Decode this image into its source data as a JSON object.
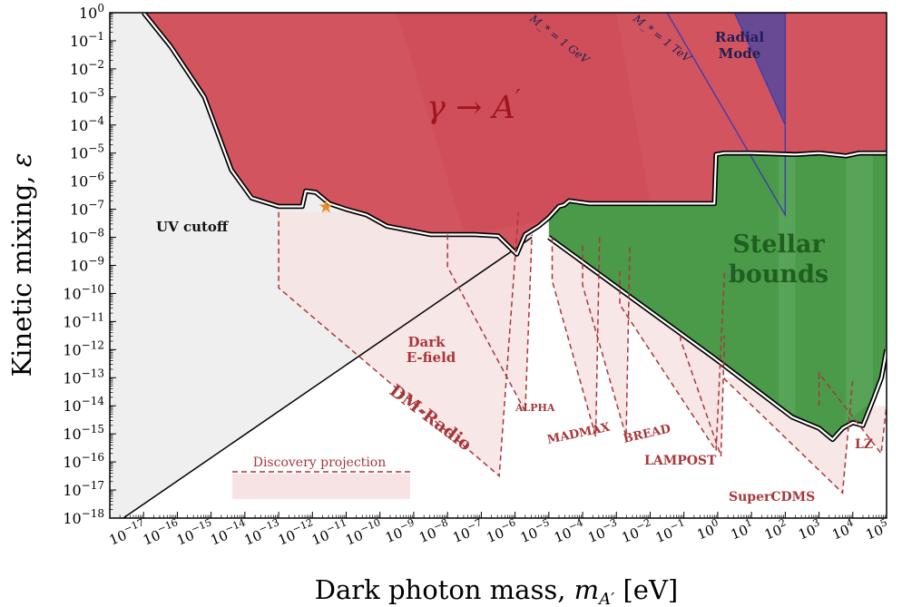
{
  "chart_data": {
    "type": "area",
    "xlabel": "Dark photon mass, m_A′ [eV]",
    "ylabel": "Kinetic mixing, ε",
    "x_scale": "log",
    "y_scale": "log",
    "xlim_exponent": [
      -18,
      5
    ],
    "ylim_exponent": [
      -18,
      0
    ],
    "x_tick_labels": [
      "10−17",
      "10−16",
      "10−15",
      "10−14",
      "10−13",
      "10−12",
      "10−11",
      "10−10",
      "10−9",
      "10−8",
      "10−7",
      "10−6",
      "10−5",
      "10−4",
      "10−3",
      "10−2",
      "10−1",
      "100",
      "101",
      "102",
      "103",
      "104",
      "105"
    ],
    "y_tick_labels": [
      "100",
      "10−1",
      "10−2",
      "10−3",
      "10−4",
      "10−5",
      "10−6",
      "10−7",
      "10−8",
      "10−9",
      "10−10",
      "10−11",
      "10−12",
      "10−13",
      "10−14",
      "10−15",
      "10−16",
      "10−17",
      "10−18"
    ],
    "regions": [
      {
        "name": "UV cutoff",
        "color": "#efefef"
      },
      {
        "name": "γ → A′",
        "color": "#d2545f"
      },
      {
        "name": "Stellar bounds",
        "color": "#4a9a4a"
      },
      {
        "name": "Radial Mode",
        "color": "#5e4a99"
      }
    ],
    "constraint_boundary": [
      [
        -17.0,
        0.0
      ],
      [
        -16.2,
        -1.2
      ],
      [
        -15.2,
        -3.0
      ],
      [
        -14.4,
        -5.6
      ],
      [
        -13.8,
        -6.6
      ],
      [
        -13.0,
        -6.9
      ],
      [
        -12.3,
        -6.9
      ],
      [
        -12.2,
        -6.35
      ],
      [
        -11.9,
        -6.4
      ],
      [
        -11.5,
        -6.8
      ],
      [
        -11.0,
        -7.0
      ],
      [
        -10.4,
        -7.2
      ],
      [
        -9.8,
        -7.6
      ],
      [
        -8.5,
        -7.9
      ],
      [
        -7.2,
        -7.9
      ],
      [
        -6.5,
        -7.95
      ],
      [
        -5.95,
        -8.6
      ],
      [
        -5.7,
        -7.9
      ],
      [
        -5.3,
        -7.6
      ],
      [
        -5.0,
        -7.3
      ],
      [
        -4.7,
        -6.9
      ],
      [
        -4.55,
        -6.85
      ],
      [
        -4.4,
        -6.7
      ],
      [
        -3.8,
        -6.8
      ],
      [
        -2.3,
        -6.8
      ],
      [
        -0.1,
        -6.8
      ],
      [
        -0.05,
        -5.05
      ],
      [
        0.2,
        -5.0
      ],
      [
        1.0,
        -5.0
      ],
      [
        2.3,
        -5.05
      ],
      [
        3.0,
        -5.0
      ],
      [
        3.8,
        -5.1
      ],
      [
        4.2,
        -5.0
      ],
      [
        5.0,
        -5.0
      ]
    ],
    "stellar_lower_boundary": [
      [
        -5.0,
        -8.0
      ],
      [
        -2.5,
        -10.2
      ],
      [
        -0.1,
        -12.3
      ],
      [
        2.2,
        -14.4
      ],
      [
        3.0,
        -14.8
      ],
      [
        3.4,
        -15.2
      ],
      [
        3.7,
        -14.8
      ],
      [
        4.0,
        -14.6
      ],
      [
        4.3,
        -14.7
      ],
      [
        4.6,
        -13.8
      ],
      [
        4.85,
        -13.0
      ],
      [
        5.0,
        -12.0
      ]
    ],
    "uv_cutoff_line": [
      [
        -17.6,
        -18.0
      ],
      [
        -5.5,
        -8.0
      ]
    ],
    "projections": [
      {
        "name": "DM-Radio",
        "x": [
          -13.0,
          -5.9
        ],
        "y_top": -7.1,
        "y_min": -16.5
      },
      {
        "name": "Dark E-field",
        "x": [
          -8.0,
          -5.5
        ],
        "y_top": -7.9,
        "y_min": -14.2
      },
      {
        "name": "ALPHA",
        "x": [
          -4.9,
          -3.5
        ],
        "y_top": -8.0,
        "y_min": -15.1
      },
      {
        "name": "MADMAX",
        "x": [
          -4.0,
          -2.6
        ],
        "y_top": -8.3,
        "y_min": -15.1
      },
      {
        "name": "BREAD",
        "x": [
          -2.9,
          0.2
        ],
        "y_top": -9.2,
        "y_min": -15.6
      },
      {
        "name": "LAMPOST",
        "x": [
          -1.1,
          0.2
        ],
        "y_top": -11.5,
        "y_min": -15.8
      },
      {
        "name": "SuperCDMS",
        "x": [
          0.2,
          4.0
        ],
        "y_top": -13.0,
        "y_min": -17.1
      },
      {
        "name": "LZ",
        "x": [
          3.0,
          5.0
        ],
        "y_top": -14.0,
        "y_min": -15.7
      }
    ],
    "radial_mode_lines": [
      {
        "name": "M_* = 1 GeV",
        "from": [
          -1.5,
          0.0
        ],
        "to": [
          2.0,
          -7.2
        ]
      },
      {
        "name": "M_* = 1 TeV",
        "from": [
          0.5,
          0.0
        ],
        "to": [
          2.0,
          -4.0
        ]
      }
    ],
    "star_marker": [
      -11.6,
      -6.9
    ]
  },
  "labels": {
    "uv_cutoff": "UV cutoff",
    "gamma_to_a_main": "γ → A",
    "gamma_to_a_prime": "′",
    "stellar_line1": "Stellar",
    "stellar_line2": "bounds",
    "radial_line1": "Radial",
    "radial_line2": "Mode",
    "mstar_gev": "M_* = 1 GeV",
    "mstar_tev": "M_* = 1 TeV",
    "dark_line1": "Dark",
    "dark_line2": "E-field",
    "dm_radio": "DM-Radio",
    "alpha": "ALPHA",
    "madmax": "MADMAX",
    "bread": "BREAD",
    "lampost": "LAMPOST",
    "supercdms": "SuperCDMS",
    "lz": "LZ",
    "legend": "Discovery projection",
    "xlabel_main": "Dark photon mass, ",
    "xlabel_sym": "m",
    "xlabel_sub": "A′",
    "xlabel_unit": " [eV]",
    "ylabel_main": "Kinetic mixing, ",
    "ylabel_sym": "ε"
  },
  "colors": {
    "uv": "#efefef",
    "red": "#d2545f",
    "green": "#4a9a4a",
    "purple": "#5e4a99",
    "projection_line": "#a8373a",
    "projection_fill": "#f7e3e3",
    "star": "#ea8a2a"
  }
}
